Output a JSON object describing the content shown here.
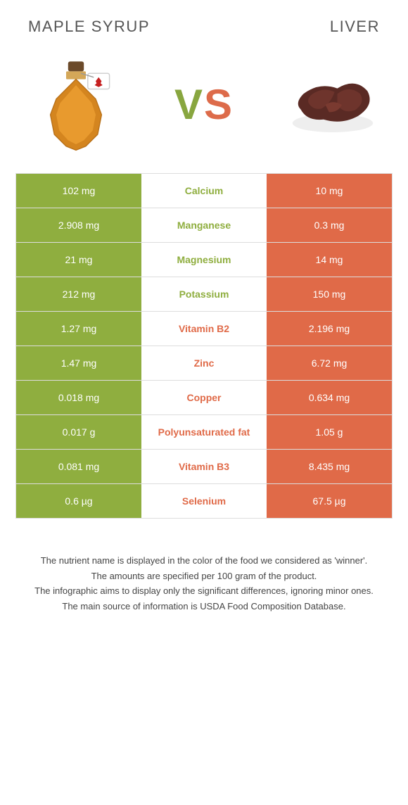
{
  "food1": {
    "title": "MAPLE SYRUP",
    "color": "#8fae3f"
  },
  "food2": {
    "title": "LIVER",
    "color": "#e06a48"
  },
  "vs": {
    "v": "V",
    "s": "S"
  },
  "rows": [
    {
      "left": "102 mg",
      "label": "Calcium",
      "right": "10 mg",
      "winner": "green"
    },
    {
      "left": "2.908 mg",
      "label": "Manganese",
      "right": "0.3 mg",
      "winner": "green"
    },
    {
      "left": "21 mg",
      "label": "Magnesium",
      "right": "14 mg",
      "winner": "green"
    },
    {
      "left": "212 mg",
      "label": "Potassium",
      "right": "150 mg",
      "winner": "green"
    },
    {
      "left": "1.27 mg",
      "label": "Vitamin B2",
      "right": "2.196 mg",
      "winner": "orange"
    },
    {
      "left": "1.47 mg",
      "label": "Zinc",
      "right": "6.72 mg",
      "winner": "orange"
    },
    {
      "left": "0.018 mg",
      "label": "Copper",
      "right": "0.634 mg",
      "winner": "orange"
    },
    {
      "left": "0.017 g",
      "label": "Polyunsaturated fat",
      "right": "1.05 g",
      "winner": "orange"
    },
    {
      "left": "0.081 mg",
      "label": "Vitamin B3",
      "right": "8.435 mg",
      "winner": "orange"
    },
    {
      "left": "0.6 µg",
      "label": "Selenium",
      "right": "67.5 µg",
      "winner": "orange"
    }
  ],
  "footer": {
    "l1": "The nutrient name is displayed in the color of the food we considered as 'winner'.",
    "l2": "The amounts are specified per 100 gram of the product.",
    "l3": "The infographic aims to display only the significant differences, ignoring minor ones.",
    "l4": "The main source of information is USDA Food Composition Database."
  },
  "colors": {
    "green": "#8fae3f",
    "orange": "#e06a48",
    "background": "#ffffff",
    "border": "#dddddd",
    "title_text": "#555555",
    "footer_text": "#444444"
  }
}
